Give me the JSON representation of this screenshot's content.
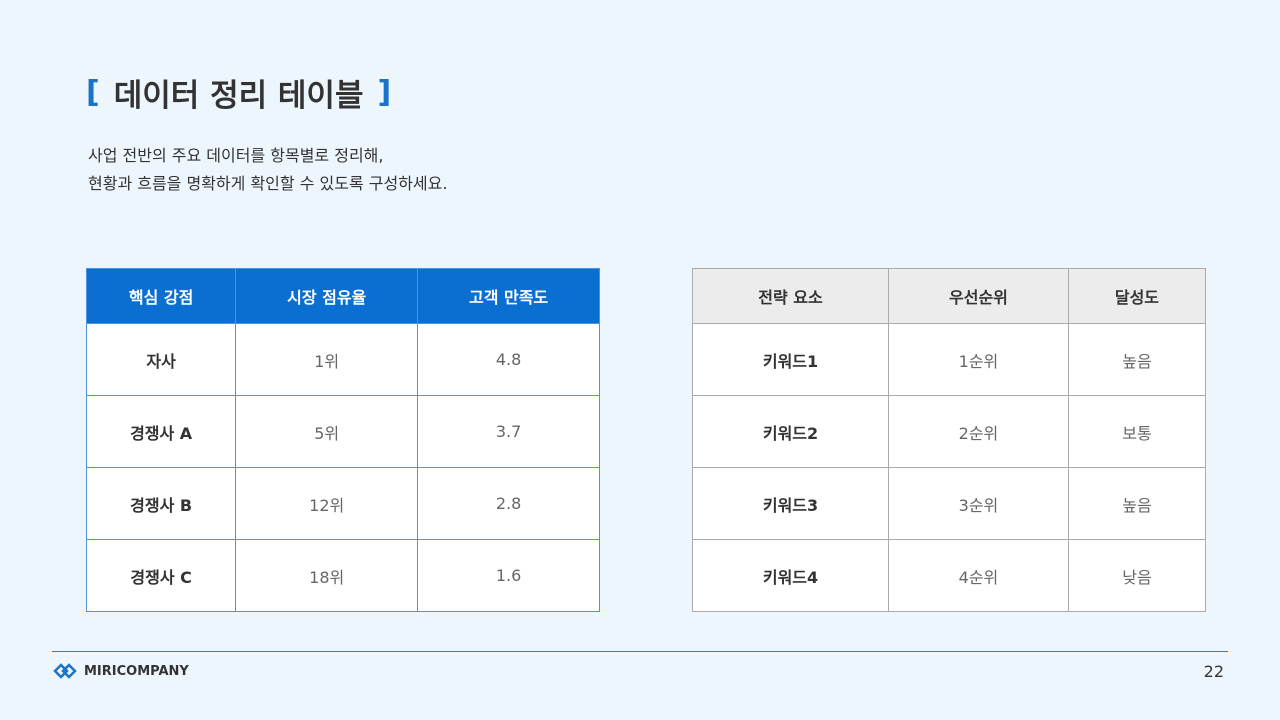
{
  "header": {
    "title": "데이터 정리 테이블",
    "description": [
      "사업 전반의 주요 데이터를 항목별로 정리해,",
      "현황과 흐름을 명확하게 확인할 수 있도록 구성하세요."
    ]
  },
  "tables": [
    {
      "columns": [
        "핵심 강점",
        "시장 점유율",
        "고객 만족도"
      ],
      "rows": [
        [
          "자사",
          "1위",
          "4.8"
        ],
        [
          "경쟁사 A",
          "5위",
          "3.7"
        ],
        [
          "경쟁사 B",
          "12위",
          "2.8"
        ],
        [
          "경쟁사 C",
          "18위",
          "1.6"
        ]
      ]
    },
    {
      "columns": [
        "전략 요소",
        "우선순위",
        "달성도"
      ],
      "rows": [
        [
          "키워드1",
          "1순위",
          "높음"
        ],
        [
          "키워드2",
          "2순위",
          "보통"
        ],
        [
          "키워드3",
          "3순위",
          "높음"
        ],
        [
          "키워드4",
          "4순위",
          "낮음"
        ]
      ]
    }
  ],
  "footer": {
    "brand": "MIRICOMPANY",
    "page": "22"
  }
}
